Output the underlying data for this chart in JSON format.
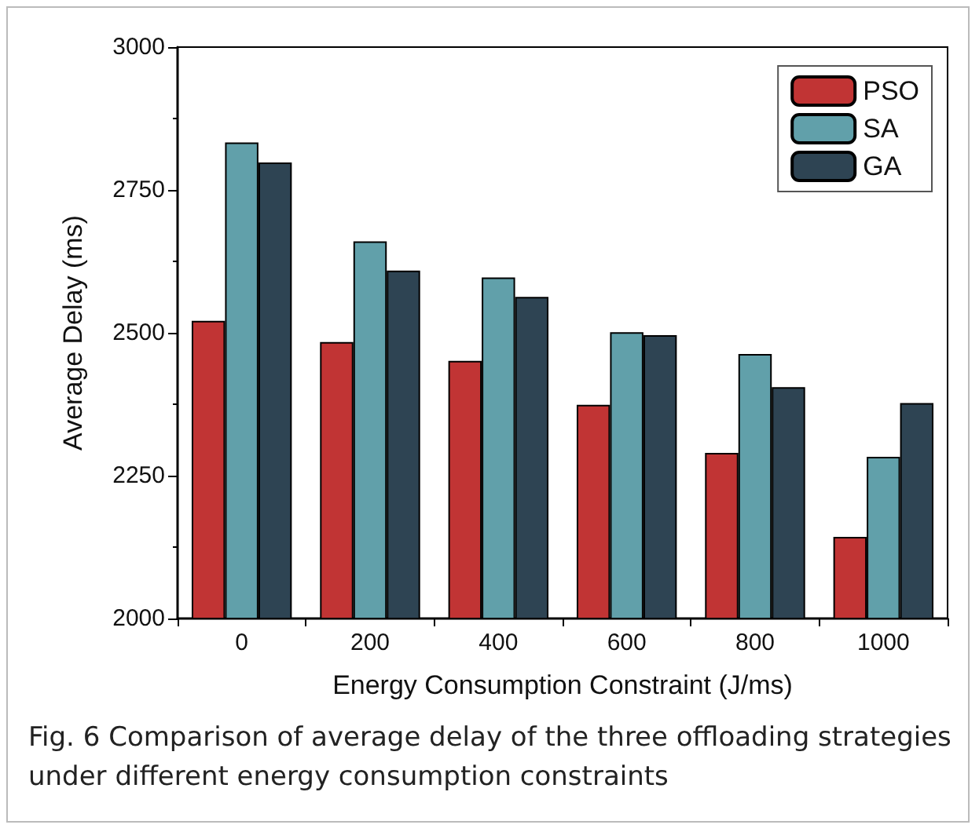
{
  "chart_data": {
    "type": "bar",
    "xlabel": "Energy Consumption Constraint (J/ms)",
    "ylabel": "Average Delay (ms)",
    "categories": [
      "0",
      "200",
      "400",
      "600",
      "800",
      "1000"
    ],
    "series": [
      {
        "name": "PSO",
        "color": "#c13434",
        "values": [
          2521,
          2484,
          2451,
          2374,
          2290,
          2143
        ]
      },
      {
        "name": "SA",
        "color": "#61a0aa",
        "values": [
          2833,
          2660,
          2597,
          2501,
          2463,
          2283
        ]
      },
      {
        "name": "GA",
        "color": "#2e4453",
        "values": [
          2798,
          2609,
          2563,
          2496,
          2405,
          2377
        ]
      }
    ],
    "ylim": [
      2000,
      3000
    ],
    "yticks": [
      2000,
      2250,
      2500,
      2750,
      3000
    ],
    "grid": false,
    "legend": "top right",
    "annotations": [
      "Fig. 6 Comparison of average delay of the three offloading strategies under different energy consumption constraints"
    ]
  }
}
